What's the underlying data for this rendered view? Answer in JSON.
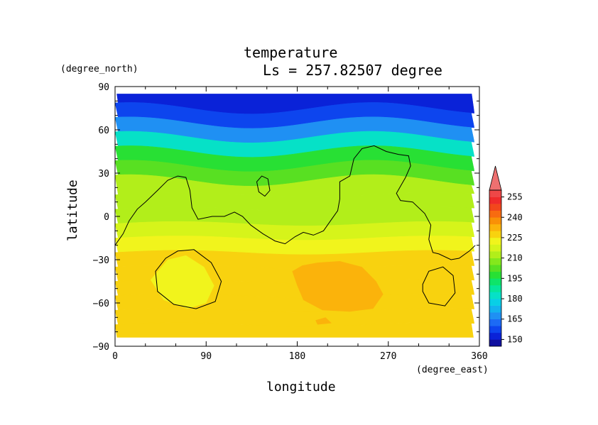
{
  "chart_data": {
    "type": "heatmap",
    "title": "temperature",
    "subtitle": "Ls = 257.82507 degree",
    "xlabel": "longitude",
    "ylabel": "latitude",
    "x_units": "(degree_east)",
    "y_units": "(degree_north)",
    "xlim": [
      0,
      360
    ],
    "ylim": [
      -90,
      90
    ],
    "xticks": [
      "0",
      "90",
      "180",
      "270",
      "360"
    ],
    "yticks": [
      "90",
      "60",
      "30",
      "0",
      "−30",
      "−60",
      "−90"
    ],
    "colorbar": {
      "levels": [
        {
          "value": 145,
          "color": "#1010a0"
        },
        {
          "value": 150,
          "color": "#0a22d8"
        },
        {
          "value": 155,
          "color": "#0d45ee"
        },
        {
          "value": 160,
          "color": "#1c6af5"
        },
        {
          "value": 165,
          "color": "#1f90f3"
        },
        {
          "value": 170,
          "color": "#13b2ef"
        },
        {
          "value": 175,
          "color": "#08cfe6"
        },
        {
          "value": 180,
          "color": "#06e1c7"
        },
        {
          "value": 185,
          "color": "#05e69c"
        },
        {
          "value": 190,
          "color": "#0ee46a"
        },
        {
          "value": 195,
          "color": "#28e034"
        },
        {
          "value": 200,
          "color": "#58e022"
        },
        {
          "value": 205,
          "color": "#84e81c"
        },
        {
          "value": 210,
          "color": "#b2ee1a"
        },
        {
          "value": 215,
          "color": "#d6f41a"
        },
        {
          "value": 220,
          "color": "#f1f41c"
        },
        {
          "value": 225,
          "color": "#f8d20f"
        },
        {
          "value": 230,
          "color": "#fbb30b"
        },
        {
          "value": 235,
          "color": "#f99007"
        },
        {
          "value": 240,
          "color": "#f86b10"
        },
        {
          "value": 245,
          "color": "#f2471c"
        },
        {
          "value": 250,
          "color": "#ef2b2b"
        },
        {
          "value": 255,
          "color": "#ee4747"
        },
        {
          "value": 260,
          "color": "#ee7070"
        }
      ],
      "tick_labels": [
        "255",
        "240",
        "225",
        "210",
        "195",
        "180",
        "165",
        "150"
      ],
      "extend": "max"
    },
    "field_rows": [
      {
        "lat": 80,
        "temp": 150
      },
      {
        "lat": 70,
        "temp": 156
      },
      {
        "lat": 60,
        "temp": 168
      },
      {
        "lat": 50,
        "temp": 180
      },
      {
        "lat": 40,
        "temp": 195
      },
      {
        "lat": 30,
        "temp": 204
      },
      {
        "lat": 20,
        "temp": 210
      },
      {
        "lat": 10,
        "temp": 213
      },
      {
        "lat": 0,
        "temp": 214
      },
      {
        "lat": -10,
        "temp": 217
      },
      {
        "lat": -20,
        "temp": 222
      },
      {
        "lat": -30,
        "temp": 226
      },
      {
        "lat": -40,
        "temp": 228
      },
      {
        "lat": -50,
        "temp": 229
      },
      {
        "lat": -60,
        "temp": 228
      },
      {
        "lat": -70,
        "temp": 228
      },
      {
        "lat": -80,
        "temp": 227
      }
    ],
    "regions": [
      {
        "name": "south-warm-patch",
        "temp": 232,
        "points": [
          [
            175,
            -38
          ],
          [
            185,
            -34
          ],
          [
            200,
            -32
          ],
          [
            222,
            -31
          ],
          [
            244,
            -35
          ],
          [
            258,
            -45
          ],
          [
            265,
            -54
          ],
          [
            255,
            -64
          ],
          [
            232,
            -66
          ],
          [
            205,
            -65
          ],
          [
            186,
            -58
          ],
          [
            180,
            -48
          ]
        ]
      },
      {
        "name": "south-spot",
        "temp": 232,
        "points": [
          [
            198,
            -72
          ],
          [
            208,
            -70
          ],
          [
            214,
            -74
          ],
          [
            200,
            -75
          ]
        ]
      },
      {
        "name": "west-cool-patch",
        "temp": 223,
        "points": [
          [
            35,
            -44
          ],
          [
            52,
            -30
          ],
          [
            70,
            -27
          ],
          [
            88,
            -35
          ],
          [
            98,
            -48
          ],
          [
            90,
            -60
          ],
          [
            72,
            -64
          ],
          [
            48,
            -58
          ]
        ]
      }
    ],
    "contours": [
      {
        "name": "topography-main",
        "points": [
          [
            0,
            -20
          ],
          [
            8,
            -12
          ],
          [
            14,
            -3
          ],
          [
            22,
            5
          ],
          [
            30,
            10
          ],
          [
            42,
            18
          ],
          [
            52,
            25
          ],
          [
            62,
            28
          ],
          [
            70,
            27
          ],
          [
            74,
            18
          ],
          [
            76,
            6
          ],
          [
            82,
            -2
          ],
          [
            96,
            0
          ],
          [
            108,
            0
          ],
          [
            118,
            3
          ],
          [
            126,
            0
          ],
          [
            134,
            -6
          ],
          [
            146,
            -12
          ],
          [
            158,
            -17
          ],
          [
            168,
            -19
          ],
          [
            178,
            -14
          ],
          [
            186,
            -11
          ],
          [
            196,
            -13
          ],
          [
            206,
            -10
          ],
          [
            214,
            -2
          ],
          [
            220,
            4
          ],
          [
            222,
            12
          ],
          [
            222,
            24
          ],
          [
            232,
            28
          ],
          [
            236,
            40
          ],
          [
            244,
            47
          ],
          [
            256,
            49
          ],
          [
            268,
            45
          ],
          [
            280,
            43
          ],
          [
            290,
            42
          ],
          [
            292,
            35
          ],
          [
            287,
            27
          ],
          [
            278,
            16
          ],
          [
            282,
            11
          ],
          [
            294,
            10
          ],
          [
            306,
            2
          ],
          [
            312,
            -6
          ],
          [
            310,
            -16
          ],
          [
            314,
            -25
          ],
          [
            320,
            -26
          ],
          [
            332,
            -30
          ],
          [
            340,
            -29
          ],
          [
            350,
            -24
          ],
          [
            356,
            -20
          ]
        ]
      },
      {
        "name": "island-north",
        "points": [
          [
            140,
            24
          ],
          [
            145,
            28
          ],
          [
            151,
            26
          ],
          [
            153,
            18
          ],
          [
            148,
            14
          ],
          [
            142,
            17
          ]
        ]
      },
      {
        "name": "west-ring",
        "points": [
          [
            40,
            -38
          ],
          [
            50,
            -29
          ],
          [
            62,
            -24
          ],
          [
            78,
            -23
          ],
          [
            95,
            -32
          ],
          [
            105,
            -45
          ],
          [
            99,
            -59
          ],
          [
            80,
            -64
          ],
          [
            58,
            -61
          ],
          [
            42,
            -52
          ]
        ]
      },
      {
        "name": "east-ring",
        "points": [
          [
            304,
            -47
          ],
          [
            310,
            -38
          ],
          [
            324,
            -35
          ],
          [
            334,
            -41
          ],
          [
            336,
            -53
          ],
          [
            326,
            -62
          ],
          [
            310,
            -60
          ],
          [
            304,
            -52
          ]
        ]
      }
    ]
  }
}
